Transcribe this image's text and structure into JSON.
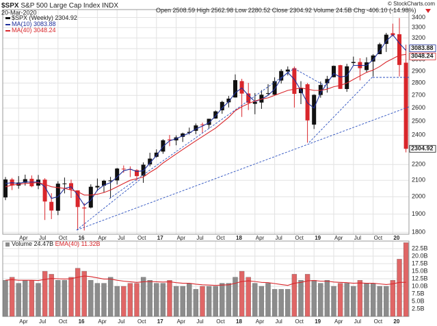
{
  "chart_data": {
    "type": "candlestick",
    "title": "$SPX",
    "subtitle": "S&P 500 Large Cap Index",
    "exchange": "INDX",
    "date": "20-Mar-2020",
    "copyright": "© StockCharts.com",
    "quote": [
      {
        "label": "Open",
        "value": "2508.59"
      },
      {
        "label": "High",
        "value": "2562.98"
      },
      {
        "label": "Low",
        "value": "2280.52"
      },
      {
        "label": "Close",
        "value": "2304.92"
      },
      {
        "label": "Volume",
        "value": "24.5B"
      },
      {
        "label": "Chg",
        "value": "-406.10 (-14.98%)"
      }
    ],
    "name": "$SPX (Weekly)",
    "up_color": "#111111",
    "down_color": "#d9262b",
    "categories": [
      null,
      null,
      "Apr",
      null,
      null,
      "Jul",
      null,
      null,
      "Oct",
      null,
      null,
      "16",
      null,
      null,
      "Apr",
      null,
      null,
      "Jul",
      null,
      null,
      "Oct",
      null,
      null,
      "17",
      null,
      null,
      "Apr",
      null,
      null,
      "Jul",
      null,
      null,
      "Oct",
      null,
      null,
      "18",
      null,
      null,
      "Apr",
      null,
      null,
      "Jul",
      null,
      null,
      "Oct",
      null,
      null,
      "19",
      null,
      null,
      "Apr",
      null,
      null,
      "Jul",
      null,
      null,
      "Oct",
      null,
      null,
      "20",
      null,
      null
    ],
    "open": [
      1996,
      2105,
      2067,
      2085,
      2109,
      2067,
      2104,
      1970,
      1919,
      2080,
      2082,
      2038,
      1937,
      1937,
      2056,
      2067,
      2094,
      2099,
      2173,
      2171,
      2164,
      2129,
      2201,
      2251,
      2286,
      2369,
      2363,
      2388,
      2416,
      2431,
      2477,
      2474,
      2521,
      2583,
      2645,
      2683,
      2816,
      2715,
      2633,
      2643,
      2718,
      2705,
      2821,
      2897,
      2926,
      2718,
      2790,
      2476,
      2703,
      2798,
      2849,
      2952,
      2751,
      2971,
      2980,
      2910,
      2984,
      3050,
      3144,
      3245,
      3235,
      2974
    ],
    "high": [
      2120,
      2115,
      2126,
      2135,
      2130,
      2133,
      2113,
      2021,
      2094,
      2117,
      2104,
      2038,
      1963,
      2075,
      2111,
      2103,
      2121,
      2178,
      2194,
      2188,
      2170,
      2214,
      2278,
      2301,
      2371,
      2401,
      2398,
      2418,
      2454,
      2484,
      2491,
      2519,
      2582,
      2657,
      2695,
      2873,
      2835,
      2801,
      2718,
      2742,
      2791,
      2848,
      2917,
      2941,
      2940,
      2816,
      2801,
      2708,
      2813,
      2860,
      2949,
      2955,
      2964,
      3028,
      3014,
      3022,
      3050,
      3155,
      3248,
      3338,
      3394,
      3137
    ],
    "low": [
      1980,
      2040,
      2048,
      2067,
      2057,
      2045,
      1867,
      1872,
      1894,
      2020,
      1993,
      1812,
      1810,
      1932,
      2034,
      2026,
      1992,
      2074,
      2147,
      2120,
      2097,
      2084,
      2188,
      2245,
      2271,
      2323,
      2329,
      2352,
      2405,
      2407,
      2417,
      2446,
      2520,
      2557,
      2605,
      2683,
      2533,
      2585,
      2553,
      2594,
      2699,
      2698,
      2796,
      2864,
      2604,
      2631,
      2347,
      2444,
      2681,
      2722,
      2848,
      2751,
      2728,
      2952,
      2822,
      2891,
      2855,
      3050,
      3070,
      3214,
      2855,
      2280.52
    ],
    "close": [
      2105,
      2068,
      2086,
      2107,
      2063,
      2104,
      1972,
      1920,
      2079,
      2080,
      2044,
      1940,
      1932,
      2060,
      2065,
      2097,
      2099,
      2174,
      2171,
      2168,
      2126,
      2199,
      2239,
      2279,
      2364,
      2363,
      2384,
      2412,
      2423,
      2470,
      2472,
      2519,
      2575,
      2648,
      2674,
      2824,
      2714,
      2641,
      2648,
      2705,
      2718,
      2816,
      2902,
      2914,
      2712,
      2760,
      2507,
      2704,
      2784,
      2834,
      2946,
      2752,
      2942,
      2980,
      2926,
      2977,
      3038,
      3141,
      3231,
      3226,
      2954,
      2304.92
    ],
    "log": true,
    "ylim": [
      1790,
      3480
    ],
    "yticks": [
      1800,
      1900,
      2000,
      2100,
      2200,
      2400,
      2500,
      2600,
      2700,
      2800,
      2900,
      3000,
      3100,
      3200,
      3300,
      3400
    ],
    "grid": true,
    "overlays": [
      {
        "name": "MA(10)",
        "color": "#1f2f9b",
        "values": [
          2080,
          2085,
          2080,
          2090,
          2088,
          2090,
          2060,
          1990,
          2000,
          2050,
          2060,
          2010,
          1950,
          1980,
          2040,
          2070,
          2085,
          2120,
          2160,
          2170,
          2155,
          2160,
          2210,
          2260,
          2320,
          2360,
          2375,
          2395,
          2415,
          2445,
          2465,
          2490,
          2540,
          2600,
          2650,
          2720,
          2760,
          2700,
          2650,
          2670,
          2700,
          2750,
          2840,
          2890,
          2830,
          2740,
          2640,
          2600,
          2720,
          2800,
          2880,
          2850,
          2860,
          2950,
          2950,
          2950,
          3000,
          3080,
          3170,
          3230,
          3150,
          3083.88
        ]
      },
      {
        "name": "MA(40)",
        "color": "#d9262b",
        "values": [
          2060,
          2070,
          2075,
          2080,
          2083,
          2085,
          2075,
          2060,
          2055,
          2050,
          2040,
          2030,
          2010,
          2010,
          2015,
          2025,
          2040,
          2060,
          2080,
          2100,
          2110,
          2120,
          2150,
          2175,
          2210,
          2240,
          2270,
          2300,
          2330,
          2360,
          2390,
          2420,
          2450,
          2490,
          2530,
          2580,
          2610,
          2635,
          2655,
          2670,
          2680,
          2700,
          2720,
          2740,
          2750,
          2760,
          2750,
          2740,
          2740,
          2750,
          2770,
          2780,
          2800,
          2830,
          2860,
          2890,
          2910,
          2940,
          2980,
          3010,
          3040,
          3048.24
        ]
      }
    ],
    "volume": {
      "name": "Volume",
      "last_label": "24.47B",
      "up_color": "#8c8c8c",
      "down_color": "#e06666",
      "values": [
        12,
        13,
        11,
        12,
        12,
        11,
        15,
        14,
        12,
        12,
        13,
        16,
        15,
        12,
        11,
        11,
        13,
        10,
        10,
        11,
        11,
        13,
        12,
        11,
        11,
        12,
        10,
        10,
        11,
        9,
        10,
        10,
        10,
        11,
        11,
        13,
        15,
        13,
        11,
        10,
        11,
        9,
        9,
        9,
        14,
        12,
        14,
        12,
        11,
        12,
        10,
        11,
        11,
        10,
        12,
        11,
        11,
        10,
        10,
        12,
        19,
        24.47
      ],
      "ylim": [
        0,
        25
      ],
      "yticks": [
        {
          "value": 2.5,
          "label": "2.5B"
        },
        {
          "value": 5,
          "label": "5.0B"
        },
        {
          "value": 7.5,
          "label": "7.5B"
        },
        {
          "value": 10,
          "label": "10.0B"
        },
        {
          "value": 12.5,
          "label": "12.5B"
        },
        {
          "value": 15,
          "label": "15.0B"
        },
        {
          "value": 17.5,
          "label": "17.5B"
        },
        {
          "value": 20,
          "label": "20.0B"
        },
        {
          "value": 22.5,
          "label": "22.5B"
        }
      ],
      "ema": {
        "name": "EMA(40)",
        "color": "#d9262b",
        "last_label": "11.32B",
        "values": [
          12,
          12.2,
          12,
          12,
          12,
          11.9,
          12.3,
          12.6,
          12.5,
          12.4,
          12.5,
          13,
          13.4,
          13.2,
          12.8,
          12.4,
          12.4,
          12,
          11.7,
          11.5,
          11.3,
          11.5,
          11.6,
          11.5,
          11.4,
          11.5,
          11.2,
          11,
          11,
          10.7,
          10.5,
          10.4,
          10.3,
          10.4,
          10.5,
          11,
          11.6,
          11.8,
          11.6,
          11.3,
          11.2,
          10.9,
          10.6,
          10.3,
          11,
          11.3,
          11.8,
          11.9,
          11.7,
          11.7,
          11.4,
          11.3,
          11.2,
          11,
          11.1,
          11,
          11,
          10.8,
          10.6,
          10.8,
          11.3,
          11.32
        ]
      }
    }
  }
}
